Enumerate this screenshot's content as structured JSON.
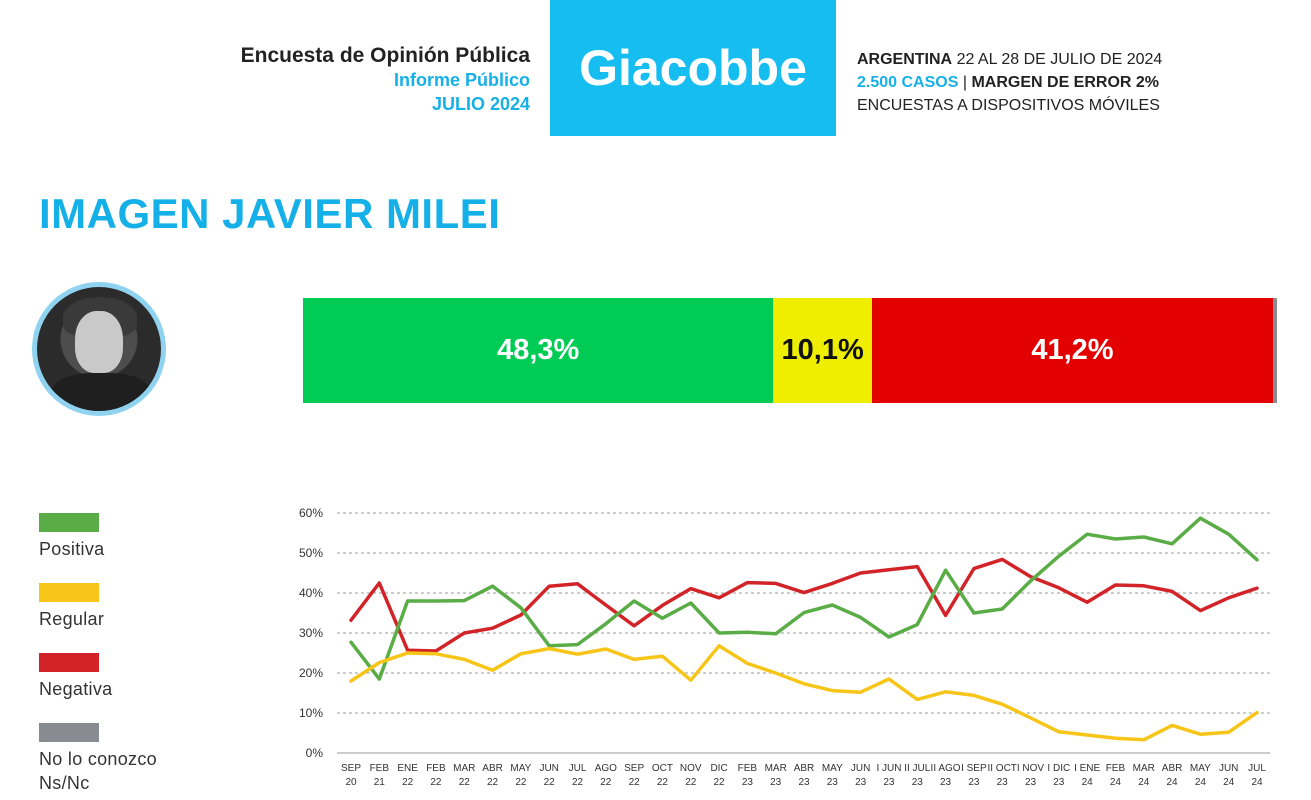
{
  "header": {
    "left_title": "Encuesta de Opinión Pública",
    "left_sub": "Informe Público",
    "left_date": "JULIO 2024",
    "brand": "Giacobbe",
    "country": "ARGENTINA",
    "dates": "22 AL 28 DE JULIO DE 2024",
    "cases": "2.500 CASOS",
    "separator": "|",
    "margin": "MARGEN DE ERROR 2%",
    "method": "ENCUESTAS A DISPOSITIVOS MÓVILES"
  },
  "title": "IMAGEN JAVIER MILEI",
  "colors": {
    "accent": "#16b0e8",
    "positiva": "#5aad46",
    "regular": "#f7c518",
    "negativa": "#d22428",
    "ns": "#888c90"
  },
  "summary_bar": {
    "segments": [
      {
        "label": "48,3%",
        "value": 48.3,
        "color": "#00cc55"
      },
      {
        "label": "10,1%",
        "value": 10.1,
        "color": "#f0ee00"
      },
      {
        "label": "41,2%",
        "value": 41.2,
        "color": "#e30000"
      },
      {
        "label": "",
        "value": 0.4,
        "color": "#888c90"
      }
    ]
  },
  "legend": {
    "items": [
      {
        "label": "Positiva",
        "color": "#5aad46"
      },
      {
        "label": "Regular",
        "color": "#f7c518"
      },
      {
        "label": "Negativa",
        "color": "#d22428"
      },
      {
        "label": "No lo conozco\nNs/Nc",
        "color": "#888c90"
      }
    ]
  },
  "chart_data": {
    "type": "line",
    "x": [
      [
        "SEP",
        "20"
      ],
      [
        "FEB",
        "21"
      ],
      [
        "ENE",
        "22"
      ],
      [
        "FEB",
        "22"
      ],
      [
        "MAR",
        "22"
      ],
      [
        "ABR",
        "22"
      ],
      [
        "MAY",
        "22"
      ],
      [
        "JUN",
        "22"
      ],
      [
        "JUL",
        "22"
      ],
      [
        "AGO",
        "22"
      ],
      [
        "SEP",
        "22"
      ],
      [
        "OCT",
        "22"
      ],
      [
        "NOV",
        "22"
      ],
      [
        "DIC",
        "22"
      ],
      [
        "FEB",
        "23"
      ],
      [
        "MAR",
        "23"
      ],
      [
        "ABR",
        "23"
      ],
      [
        "MAY",
        "23"
      ],
      [
        "JUN",
        "23"
      ],
      [
        "I JUN",
        "23"
      ],
      [
        "II JUL",
        "23"
      ],
      [
        "II AGO",
        "23"
      ],
      [
        "I SEP",
        "23"
      ],
      [
        "II OCT",
        "23"
      ],
      [
        "I NOV",
        "23"
      ],
      [
        "I DIC",
        "23"
      ],
      [
        "I ENE",
        "24"
      ],
      [
        "FEB",
        "24"
      ],
      [
        "MAR",
        "24"
      ],
      [
        "ABR",
        "24"
      ],
      [
        "MAY",
        "24"
      ],
      [
        "JUN",
        "24"
      ],
      [
        "JUL",
        "24"
      ]
    ],
    "series": [
      {
        "name": "Positiva",
        "color": "#5aad46",
        "values": [
          27.7,
          18.5,
          38,
          38,
          38.1,
          41.7,
          36.3,
          26.8,
          27.1,
          32.3,
          38,
          33.7,
          37.5,
          30,
          30.2,
          29.8,
          35.1,
          37,
          33.9,
          29,
          32.1,
          45.7,
          35,
          36,
          43,
          49.2,
          54.7,
          53.5,
          54,
          52.3,
          58.7,
          54.7,
          48.3
        ]
      },
      {
        "name": "Regular",
        "color": "#f7c518",
        "values": [
          18,
          22.6,
          25,
          24.8,
          23.4,
          20.7,
          24.8,
          26.1,
          24.7,
          26,
          23.4,
          24.2,
          18.2,
          26.8,
          22.4,
          20,
          17.3,
          15.6,
          15.2,
          18.5,
          13.4,
          15.3,
          14.4,
          12.2,
          8.8,
          5.3,
          4.5,
          3.7,
          3.3,
          6.9,
          4.7,
          5.2,
          10.1
        ]
      },
      {
        "name": "Negativa",
        "color": "#d22428",
        "values": [
          33.2,
          42.5,
          25.7,
          25.5,
          30,
          31.2,
          34.5,
          41.7,
          42.3,
          37,
          31.8,
          36.9,
          41.1,
          38.8,
          42.6,
          42.4,
          40.1,
          42.4,
          45,
          45.8,
          46.6,
          34.4,
          46.1,
          48.4,
          44.1,
          41.3,
          37.7,
          42,
          41.8,
          40.4,
          35.6,
          38.8,
          41.2
        ]
      }
    ],
    "yticks": [
      "0%",
      "10%",
      "20%",
      "30%",
      "40%",
      "50%",
      "60%"
    ],
    "ylim": [
      0,
      60
    ],
    "grid": true,
    "legend_position": "left"
  }
}
